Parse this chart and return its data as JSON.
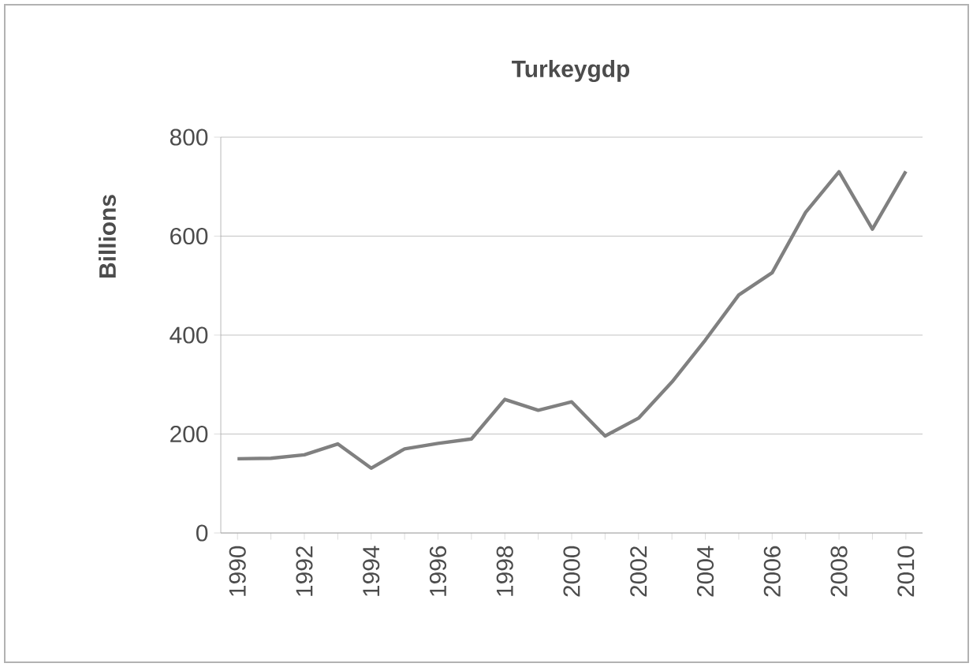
{
  "chart_data": {
    "type": "line",
    "title": "Turkeygdp",
    "ylabel": "Billions",
    "categories": [
      "1990",
      null,
      "1992",
      null,
      "1994",
      null,
      "1996",
      null,
      "1998",
      null,
      "2000",
      null,
      "2002",
      null,
      "2004",
      null,
      "2006",
      null,
      "2008",
      null,
      "2010"
    ],
    "series": [
      {
        "color": "#808080",
        "values": [
          150,
          151,
          158,
          180,
          131,
          170,
          181,
          190,
          270,
          248,
          265,
          196,
          232,
          305,
          390,
          481,
          526,
          648,
          730,
          614,
          731
        ]
      }
    ],
    "ylim": [
      0,
      800
    ],
    "yticks": [
      0,
      200,
      400,
      600,
      800
    ],
    "grid": "y",
    "marker": "none",
    "line_style": "solid"
  }
}
